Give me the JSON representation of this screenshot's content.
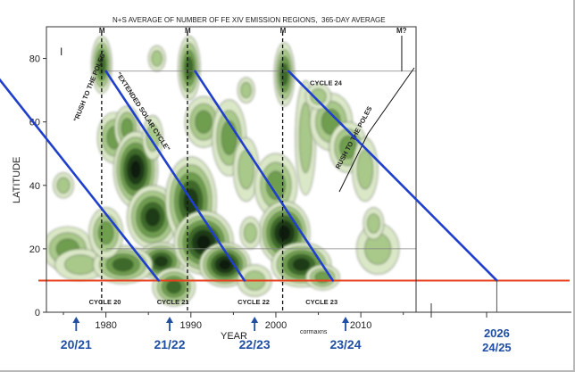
{
  "chart_data": {
    "type": "heatmap",
    "title": "N+S AVERAGE OF NUMBER OF FE XIV EMISSION REGIONS,",
    "subtitle": "365-DAY AVERAGE",
    "xlabel": "YEAR",
    "ylabel": "LATITUDE",
    "credit": "cormaxns",
    "panel_mark": "I",
    "xlim": [
      1973,
      2016.5
    ],
    "ylim": [
      0,
      90
    ],
    "x_ticks": [
      1980,
      1990,
      2000,
      2010
    ],
    "y_ticks": [
      0,
      20,
      40,
      60,
      80
    ],
    "maxima": [
      {
        "label": "M",
        "year": 1979.5
      },
      {
        "label": "M",
        "year": 1989.6
      },
      {
        "label": "M",
        "year": 2000.8
      },
      {
        "label": "M?",
        "year": 2014.5
      }
    ],
    "cycle_labels": [
      {
        "text": "CYCLE 20",
        "year": 1978,
        "lat": 2
      },
      {
        "text": "CYCLE 21",
        "year": 1986,
        "lat": 2
      },
      {
        "text": "CYCLE 22",
        "year": 1995.5,
        "lat": 2
      },
      {
        "text": "CYCLE 23",
        "year": 2003.5,
        "lat": 2
      },
      {
        "text": "CYCLE 24",
        "year": 2004,
        "lat": 71
      }
    ],
    "annotations": [
      "\"RUSH TO THE POLES\"",
      "\"EXTENDED SOLAR CYCLE\"",
      "RUSH TO THE POLES"
    ],
    "reference_lines": [
      {
        "kind": "horizontal",
        "color": "#e8401c",
        "lat": 10
      },
      {
        "kind": "horizontal",
        "color": "#808080",
        "lat": 76
      },
      {
        "kind": "horizontal",
        "color": "#808080",
        "lat": 20
      }
    ],
    "trend_lines": [
      {
        "color": "#1f3fcc",
        "from": [
          1967.3,
          74
        ],
        "to": [
          1986.2,
          10
        ]
      },
      {
        "color": "#1f3fcc",
        "from": [
          1980,
          76
        ],
        "to": [
          1996.3,
          10
        ]
      },
      {
        "color": "#1f3fcc",
        "from": [
          1990.5,
          76
        ],
        "to": [
          2006.7,
          10
        ]
      },
      {
        "color": "#1f3fcc",
        "from": [
          2001.5,
          76
        ],
        "to": [
          2026,
          10
        ]
      }
    ],
    "transitions": [
      {
        "label": "20/21",
        "year": 1976.5
      },
      {
        "label": "21/22",
        "year": 1987.5
      },
      {
        "label": "22/23",
        "year": 1997.5
      },
      {
        "label": "23/24",
        "year": 2008.2
      },
      {
        "label": "2026\n24/25",
        "year": 2026,
        "label_top": "2026",
        "label_bottom": "24/25"
      }
    ],
    "blobs": [
      {
        "year": 1975.5,
        "lat": 20,
        "w": 3.0,
        "h": 7,
        "level": 0.5
      },
      {
        "year": 1977,
        "lat": 15,
        "w": 3.0,
        "h": 5,
        "level": 0.4
      },
      {
        "year": 1975,
        "lat": 40,
        "w": 1.2,
        "h": 4,
        "level": 0.35
      },
      {
        "year": 1979.5,
        "lat": 78,
        "w": 1.2,
        "h": 9,
        "level": 0.6
      },
      {
        "year": 1981,
        "lat": 55,
        "w": 2.0,
        "h": 8,
        "level": 0.5
      },
      {
        "year": 1982.5,
        "lat": 58,
        "w": 1.5,
        "h": 7,
        "level": 0.55
      },
      {
        "year": 1983.5,
        "lat": 45,
        "w": 2.6,
        "h": 12,
        "level": 0.95
      },
      {
        "year": 1985.5,
        "lat": 30,
        "w": 3.0,
        "h": 10,
        "level": 0.85
      },
      {
        "year": 1986.5,
        "lat": 16,
        "w": 2.8,
        "h": 6,
        "level": 0.75
      },
      {
        "year": 1982,
        "lat": 15,
        "w": 3.5,
        "h": 6,
        "level": 0.7
      },
      {
        "year": 1980,
        "lat": 25,
        "w": 2.0,
        "h": 8,
        "level": 0.55
      },
      {
        "year": 1989.8,
        "lat": 77,
        "w": 1.3,
        "h": 10,
        "level": 0.65
      },
      {
        "year": 1991.5,
        "lat": 60,
        "w": 2.2,
        "h": 8,
        "level": 0.5
      },
      {
        "year": 1990,
        "lat": 35,
        "w": 3.0,
        "h": 14,
        "level": 0.9
      },
      {
        "year": 1991.5,
        "lat": 22,
        "w": 3.5,
        "h": 10,
        "level": 1.0
      },
      {
        "year": 1994,
        "lat": 15,
        "w": 3.0,
        "h": 7,
        "level": 0.95
      },
      {
        "year": 1988,
        "lat": 8,
        "w": 2.5,
        "h": 6,
        "level": 0.6
      },
      {
        "year": 1994.5,
        "lat": 55,
        "w": 2.0,
        "h": 12,
        "level": 0.55
      },
      {
        "year": 1996.5,
        "lat": 45,
        "w": 1.5,
        "h": 10,
        "level": 0.35
      },
      {
        "year": 2001,
        "lat": 75,
        "w": 1.2,
        "h": 10,
        "level": 0.65
      },
      {
        "year": 2003.5,
        "lat": 55,
        "w": 1.2,
        "h": 18,
        "level": 0.35
      },
      {
        "year": 2000,
        "lat": 40,
        "w": 2.5,
        "h": 10,
        "level": 0.45
      },
      {
        "year": 2001,
        "lat": 25,
        "w": 3.0,
        "h": 10,
        "level": 0.95
      },
      {
        "year": 2003,
        "lat": 15,
        "w": 3.5,
        "h": 7,
        "level": 0.9
      },
      {
        "year": 2005.5,
        "lat": 11,
        "w": 2.0,
        "h": 4,
        "level": 0.5
      },
      {
        "year": 1997.5,
        "lat": 10,
        "w": 2.0,
        "h": 5,
        "level": 0.4
      },
      {
        "year": 2006.5,
        "lat": 60,
        "w": 2.5,
        "h": 9,
        "level": 0.55
      },
      {
        "year": 2008.5,
        "lat": 52,
        "w": 2.2,
        "h": 8,
        "level": 0.45
      },
      {
        "year": 2010.5,
        "lat": 45,
        "w": 1.5,
        "h": 10,
        "level": 0.35
      },
      {
        "year": 2012,
        "lat": 20,
        "w": 2.5,
        "h": 8,
        "level": 0.35
      },
      {
        "year": 2011.5,
        "lat": 28,
        "w": 1.2,
        "h": 5,
        "level": 0.3
      },
      {
        "year": 2005,
        "lat": 68,
        "w": 1.5,
        "h": 4,
        "level": 0.35
      },
      {
        "year": 1996.5,
        "lat": 70,
        "w": 1.0,
        "h": 4,
        "level": 0.3
      },
      {
        "year": 1986,
        "lat": 80,
        "w": 1.0,
        "h": 4,
        "level": 0.3
      },
      {
        "year": 1985.5,
        "lat": 55,
        "w": 1.2,
        "h": 7,
        "level": 0.35
      },
      {
        "year": 1997,
        "lat": 25,
        "w": 1.2,
        "h": 5,
        "level": 0.3
      }
    ]
  }
}
